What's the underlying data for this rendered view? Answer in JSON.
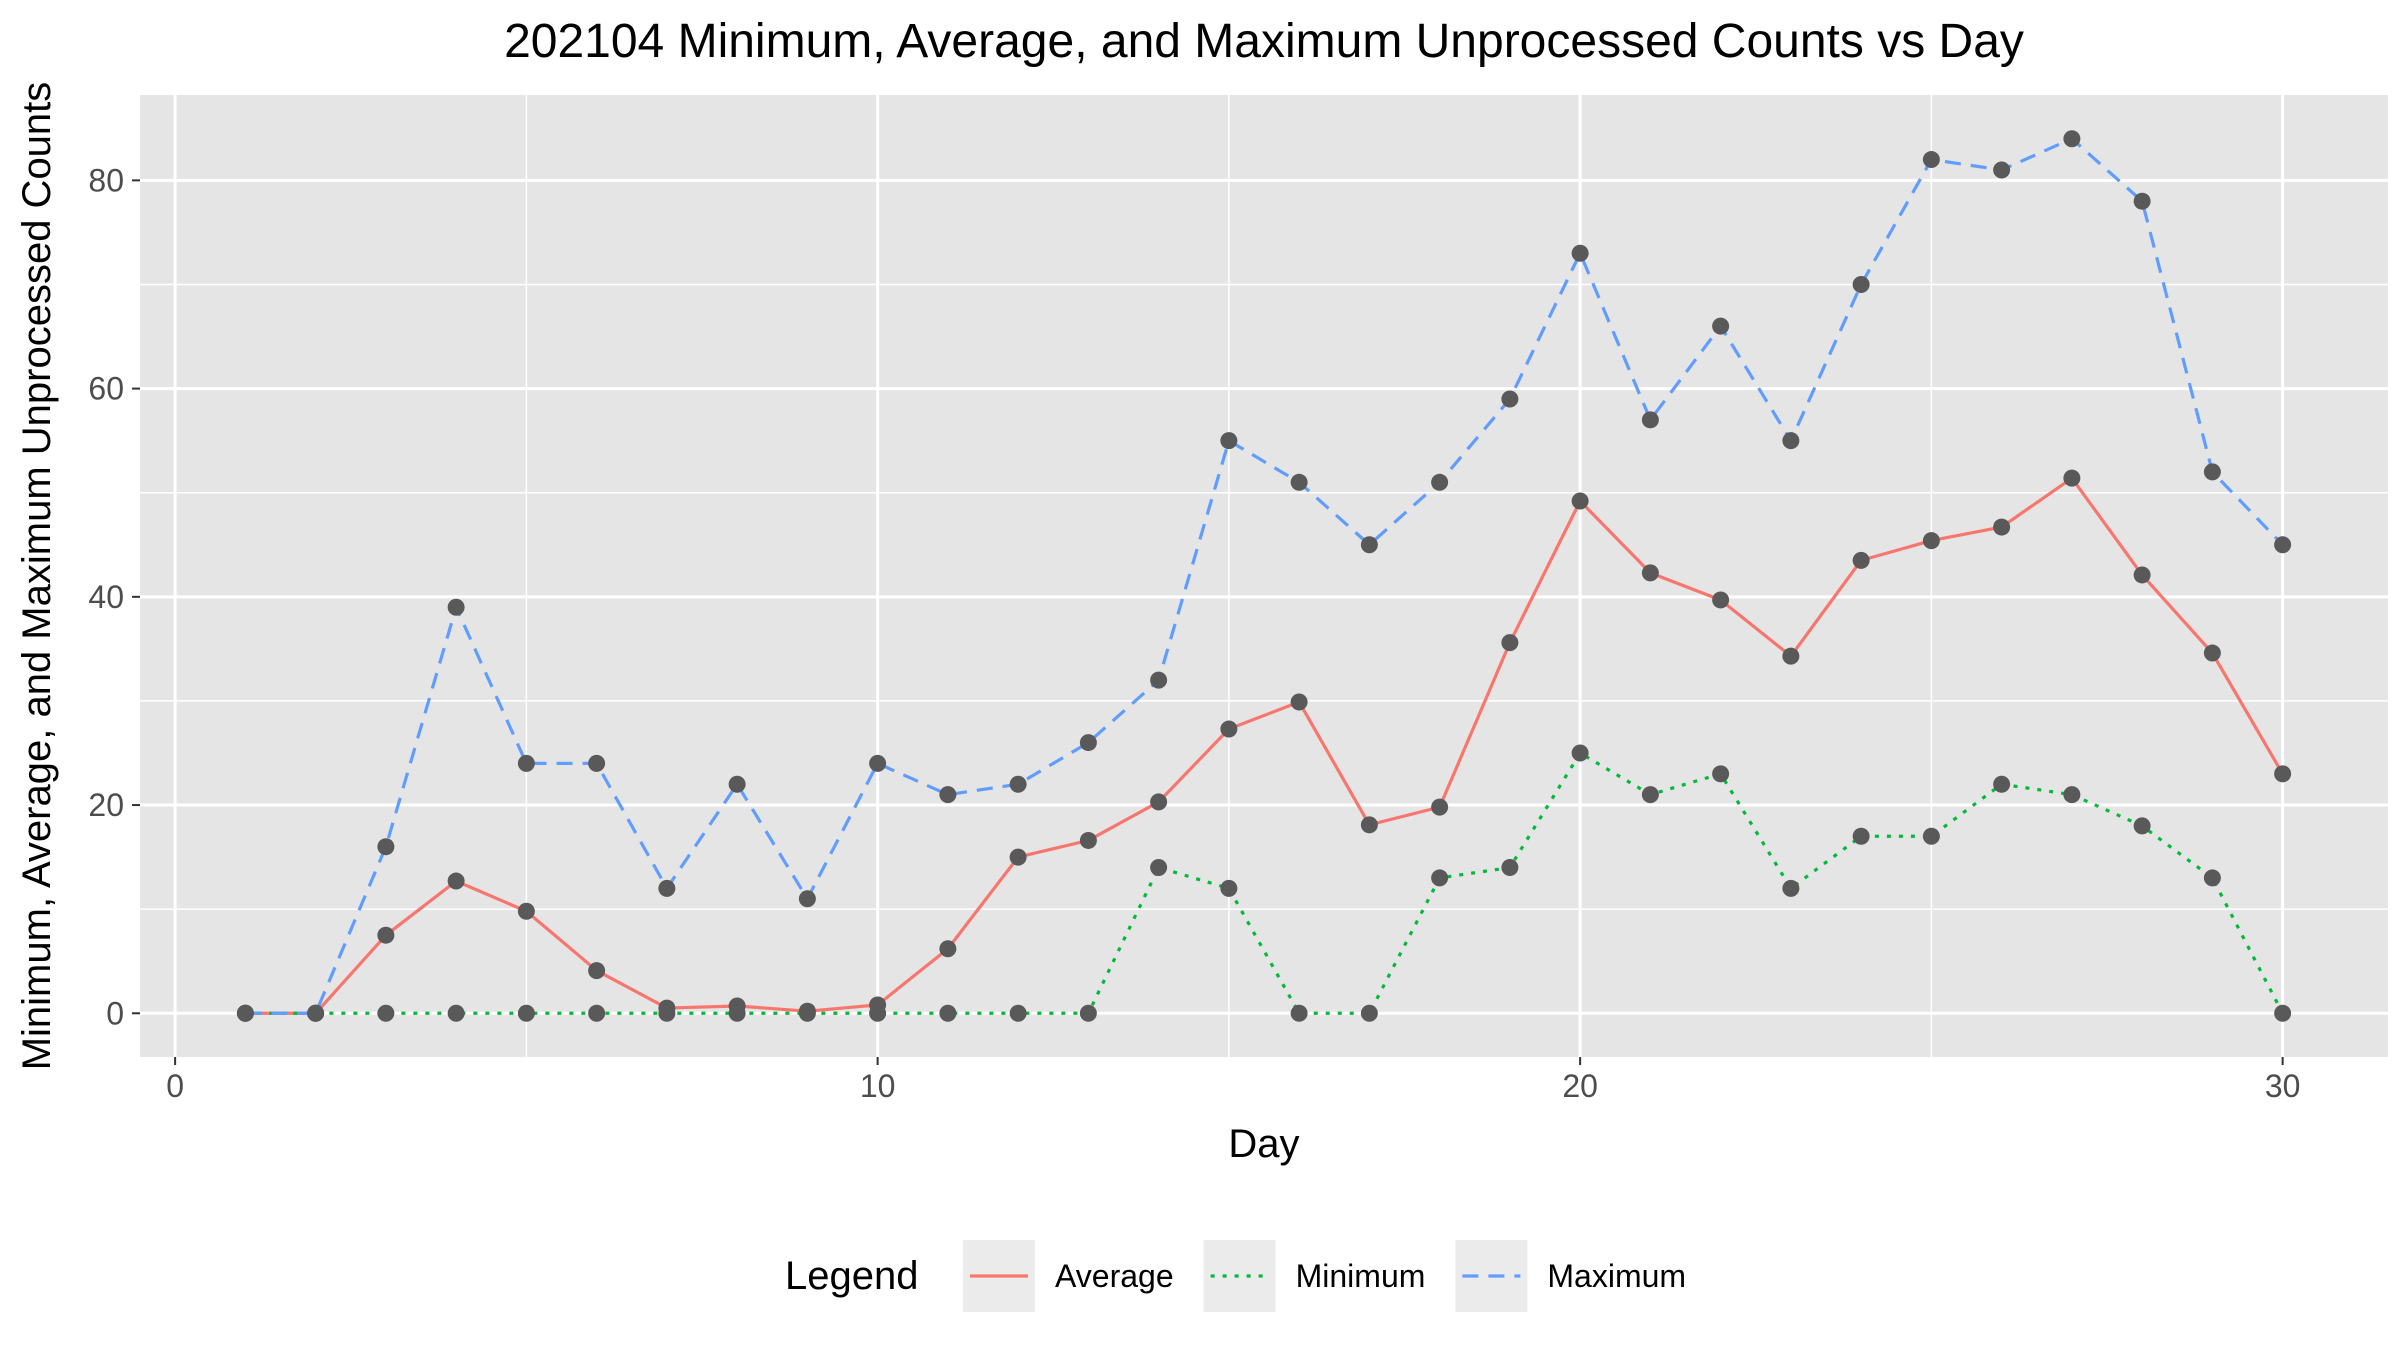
{
  "chart_data": {
    "type": "line",
    "title": "202104 Minimum, Average, and Maximum Unprocessed Counts vs Day",
    "xlabel": "Day",
    "ylabel": "Minimum, Average, and Maximum Unprocessed Counts",
    "xlim": [
      -0.5,
      31.5
    ],
    "ylim": [
      -4.2,
      88.2
    ],
    "xticks": [
      0,
      10,
      20,
      30
    ],
    "yticks": [
      0,
      20,
      40,
      60,
      80
    ],
    "grid": true,
    "legend": {
      "title": "Legend",
      "position": "bottom"
    },
    "x": [
      1,
      2,
      3,
      4,
      5,
      6,
      7,
      8,
      9,
      10,
      11,
      12,
      13,
      14,
      15,
      16,
      17,
      18,
      19,
      20,
      21,
      22,
      23,
      24,
      25,
      26,
      27,
      28,
      29,
      30
    ],
    "series": [
      {
        "name": "Average",
        "color": "#F8766D",
        "dash": "solid",
        "values": [
          0,
          0,
          7.5,
          12.7,
          9.8,
          4.1,
          0.5,
          0.7,
          0.2,
          0.8,
          6.2,
          15.0,
          16.6,
          20.3,
          27.3,
          29.9,
          18.1,
          19.8,
          35.6,
          49.2,
          42.3,
          39.7,
          34.3,
          43.5,
          45.4,
          46.7,
          51.4,
          42.1,
          34.6,
          23.0
        ]
      },
      {
        "name": "Minimum",
        "color": "#00BA38",
        "dash": "dotted",
        "values": [
          0,
          0,
          0,
          0,
          0,
          0,
          0,
          0,
          0,
          0,
          0,
          0,
          0,
          14,
          12,
          0,
          0,
          13,
          14,
          25,
          21,
          23,
          12,
          17,
          17,
          22,
          21,
          18,
          13,
          0
        ]
      },
      {
        "name": "Maximum",
        "color": "#619CFF",
        "dash": "dashed",
        "values": [
          0,
          0,
          16,
          39,
          24,
          24,
          12,
          22,
          11,
          24,
          21,
          22,
          26,
          32,
          55,
          51,
          45,
          51,
          59,
          73,
          57,
          66,
          55,
          70,
          82,
          81,
          84,
          78,
          52,
          45
        ]
      }
    ],
    "colors": {
      "panel_background": "#E5E5E5",
      "grid": "#FFFFFF",
      "point": "#595959",
      "legend_key_background": "#EBEBEB",
      "text": "#000000",
      "tick_text": "#4D4D4D"
    }
  }
}
